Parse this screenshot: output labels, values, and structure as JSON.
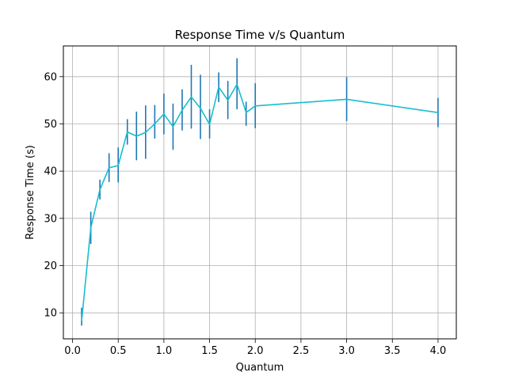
{
  "chart_data": {
    "type": "line",
    "title": "Response Time v/s Quantum",
    "xlabel": "Quantum",
    "ylabel": "Response Time (s)",
    "xlim": [
      -0.1,
      4.2
    ],
    "ylim": [
      4.5,
      66.5
    ],
    "grid": true,
    "x_ticks": [
      0.0,
      0.5,
      1.0,
      1.5,
      2.0,
      2.5,
      3.0,
      3.5,
      4.0
    ],
    "x_tick_labels": [
      "0.0",
      "0.5",
      "1.0",
      "1.5",
      "2.0",
      "2.5",
      "3.0",
      "3.5",
      "4.0"
    ],
    "y_ticks": [
      10,
      20,
      30,
      40,
      50,
      60
    ],
    "y_tick_labels": [
      "10",
      "20",
      "30",
      "40",
      "50",
      "60"
    ],
    "line_color": "#17becf",
    "errorbar_color": "#1f77b4",
    "series": [
      {
        "x": [
          0.1,
          0.2,
          0.3,
          0.4,
          0.5,
          0.6,
          0.7,
          0.8,
          0.9,
          1.0,
          1.1,
          1.2,
          1.3,
          1.4,
          1.5,
          1.6,
          1.7,
          1.8,
          1.9,
          2.0,
          3.0,
          4.0
        ],
        "y": [
          8.3,
          28.0,
          36.1,
          40.7,
          41.2,
          48.3,
          47.4,
          48.2,
          50.0,
          52.1,
          49.4,
          52.9,
          55.7,
          53.3,
          49.9,
          57.8,
          55.0,
          58.4,
          52.4,
          53.8,
          55.2,
          52.4
        ],
        "err_low": [
          7.3,
          24.6,
          34.0,
          37.7,
          37.6,
          45.6,
          42.3,
          42.6,
          46.9,
          47.8,
          44.5,
          48.6,
          49.0,
          46.8,
          46.9,
          54.6,
          51.0,
          53.1,
          49.6,
          49.1,
          50.6,
          49.3
        ],
        "err_high": [
          11.1,
          31.4,
          38.2,
          43.8,
          45.0,
          51.0,
          52.6,
          53.9,
          54.0,
          56.4,
          54.3,
          57.3,
          62.5,
          60.4,
          53.1,
          60.9,
          59.1,
          63.9,
          54.7,
          58.6,
          59.9,
          55.5
        ]
      }
    ]
  }
}
